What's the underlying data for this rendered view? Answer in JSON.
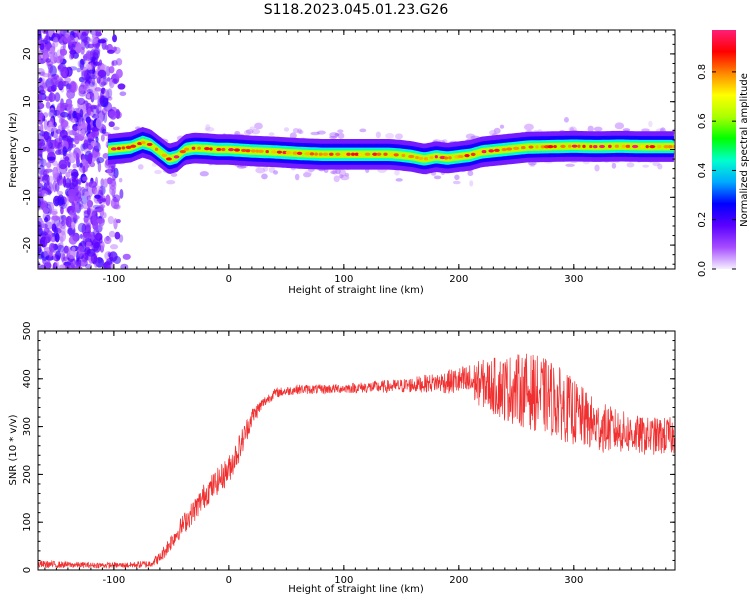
{
  "title": "S118.2023.045.01.23.G26",
  "chart_data": [
    {
      "type": "heatmap",
      "xlabel": "Height of straight line (km)",
      "ylabel": "Frequency (Hz)",
      "xlim": [
        -166,
        388
      ],
      "ylim": [
        -25,
        25
      ],
      "xticks": [
        -100,
        0,
        100,
        200,
        300
      ],
      "yticks": [
        -20,
        -10,
        0,
        10,
        20
      ],
      "colorbar": {
        "label": "Normalized spectral amplitude",
        "range": [
          0,
          0.97
        ],
        "ticks": [
          0.0,
          0.2,
          0.4,
          0.6,
          0.8
        ],
        "colors": [
          "#f5f0ff",
          "#a64dff",
          "#5a00ff",
          "#0000ff",
          "#00aaff",
          "#00ffcc",
          "#00ff00",
          "#aaff00",
          "#ffff00",
          "#ff8800",
          "#ff0000",
          "#ff1e78"
        ]
      },
      "noise_region_x": [
        -166,
        -88
      ],
      "ridge": {
        "x": [
          -105,
          -85,
          -75,
          -68,
          -60,
          -52,
          -45,
          -38,
          -30,
          -20,
          -10,
          0,
          20,
          40,
          60,
          80,
          100,
          120,
          140,
          150,
          160,
          170,
          180,
          190,
          200,
          210,
          220,
          240,
          260,
          280,
          300,
          320,
          340,
          360,
          388
        ],
        "y": [
          0,
          0.5,
          1.5,
          1.0,
          -0.5,
          -2.0,
          -1.5,
          0,
          0.3,
          0.2,
          0,
          0,
          -0.3,
          -0.5,
          -0.8,
          -1.0,
          -1.0,
          -1.0,
          -1.0,
          -1.2,
          -1.5,
          -2.0,
          -1.5,
          -1.8,
          -1.5,
          -1.2,
          -0.5,
          0,
          0.5,
          0.6,
          0.7,
          0.6,
          0.7,
          0.6,
          0.6
        ]
      }
    },
    {
      "type": "line",
      "xlabel": "Height of straight line (km)",
      "ylabel": "SNR (10 * v/v)",
      "xlim": [
        -166,
        388
      ],
      "ylim": [
        0,
        500
      ],
      "xticks": [
        -100,
        0,
        100,
        200,
        300
      ],
      "yticks": [
        0,
        100,
        200,
        300,
        400,
        500
      ],
      "color": "#f03030",
      "series": [
        {
          "x": [
            -166,
            -120,
            -90,
            -70,
            -60,
            -50,
            -40,
            -30,
            -20,
            -10,
            0,
            10,
            20,
            30,
            40,
            60,
            80,
            100,
            120,
            150,
            180,
            200,
            220,
            240,
            260,
            280,
            300,
            320,
            340,
            360,
            388
          ],
          "y": [
            12,
            10,
            10,
            12,
            25,
            60,
            95,
            125,
            160,
            185,
            210,
            260,
            320,
            350,
            370,
            378,
            378,
            380,
            382,
            385,
            392,
            395,
            390,
            380,
            375,
            360,
            330,
            300,
            290,
            280,
            280
          ],
          "spread": [
            8,
            6,
            6,
            8,
            12,
            18,
            22,
            25,
            28,
            28,
            30,
            30,
            20,
            12,
            10,
            10,
            10,
            10,
            12,
            15,
            20,
            30,
            50,
            70,
            80,
            80,
            70,
            55,
            45,
            40,
            40
          ]
        }
      ]
    }
  ]
}
